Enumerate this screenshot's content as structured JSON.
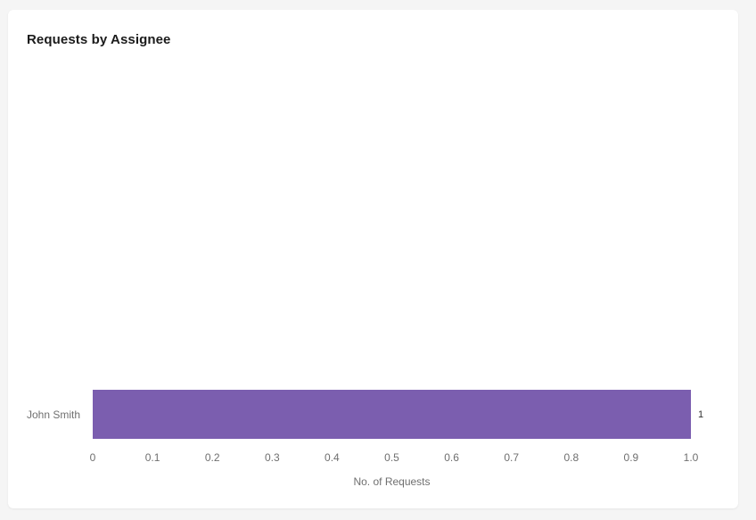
{
  "widget": {
    "title": "Requests by Assignee"
  },
  "colors": {
    "page_background": "#f5f5f5",
    "card_background": "#ffffff",
    "title_text": "#1b1b1b",
    "axis_text": "#6f6f6f",
    "value_text": "#2f2f2f",
    "bar": "#7B5EAF"
  },
  "chart_data": {
    "type": "bar",
    "orientation": "horizontal",
    "title": "Requests by Assignee",
    "categories": [
      "John Smith"
    ],
    "values": [
      1
    ],
    "value_labels": [
      "1"
    ],
    "xlabel": "No. of Requests",
    "ylabel": "",
    "xlim": [
      0,
      1.0
    ],
    "xticks": [
      0,
      0.1,
      0.2,
      0.3,
      0.4,
      0.5,
      0.6,
      0.7,
      0.8,
      0.9,
      1.0
    ],
    "xtick_labels": [
      "0",
      "0.1",
      "0.2",
      "0.3",
      "0.4",
      "0.5",
      "0.6",
      "0.7",
      "0.8",
      "0.9",
      "1.0"
    ],
    "grid": false,
    "legend": false,
    "bar_color": "#7B5EAF"
  }
}
